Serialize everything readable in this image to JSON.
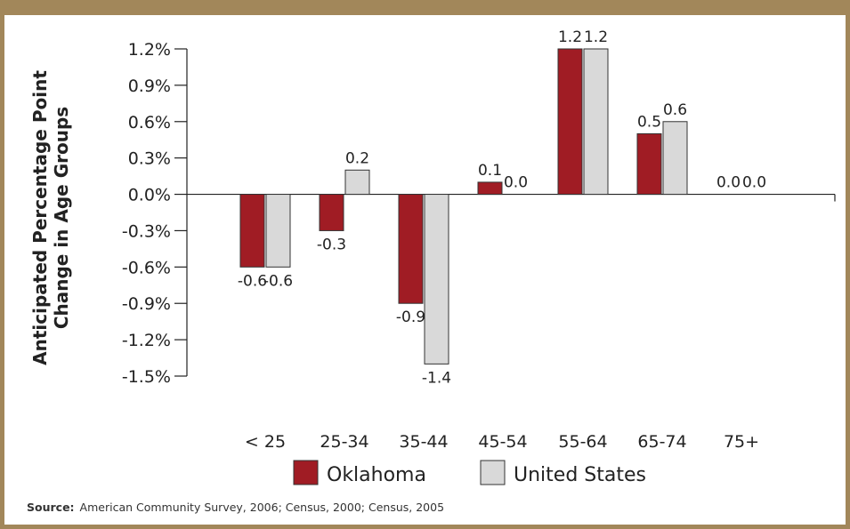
{
  "chart_data": {
    "type": "bar",
    "categories": [
      "< 25",
      "25-34",
      "35-44",
      "45-54",
      "55-64",
      "65-74",
      "75+"
    ],
    "series": [
      {
        "name": "Oklahoma",
        "color": "#a01c24",
        "values": [
          -0.6,
          -0.3,
          -0.9,
          0.1,
          1.2,
          0.5,
          0.0
        ]
      },
      {
        "name": "United States",
        "color": "#d9d9d9",
        "values": [
          -0.6,
          0.2,
          -1.4,
          0.0,
          1.2,
          0.6,
          0.0
        ]
      }
    ],
    "ylabel_lines": [
      "Anticipated Percentage Point",
      "Change in Age Groups"
    ],
    "yticks": [
      "1.2%",
      "0.9%",
      "0.6%",
      "0.3%",
      "0.0%",
      "-0.3%",
      "-0.6%",
      "-0.9%",
      "-1.2%",
      "-1.5%"
    ],
    "ylim": [
      -1.5,
      1.2
    ],
    "grid": false,
    "legend_position": "bottom"
  },
  "source": {
    "label": "Source:",
    "text": "American Community Survey, 2006; Census, 2000; Census, 2005"
  }
}
